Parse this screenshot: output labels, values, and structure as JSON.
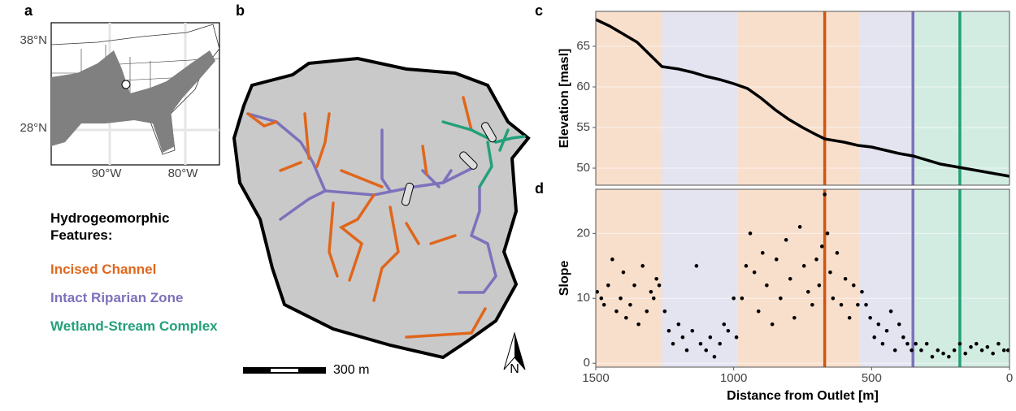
{
  "panel_a": {
    "label": "a",
    "lat_labels": [
      "38°N",
      "28°N"
    ],
    "lon_labels": [
      "90°W",
      "80°W"
    ]
  },
  "panel_b": {
    "label": "b",
    "scale_label": "300 m",
    "north_label": "N"
  },
  "legend": {
    "title": "Hydrogeomorphic Features:",
    "entries": [
      {
        "name": "Incised Channel",
        "color": "#e0661c"
      },
      {
        "name": "Intact Riparian Zone",
        "color": "#7c72bb"
      },
      {
        "name": "Wetland-Stream Complex",
        "color": "#23a07b"
      }
    ]
  },
  "chart_data": [
    {
      "type": "line",
      "label": "c",
      "y_label": "Elevation [masl]",
      "color": "#000000",
      "xlim": [
        1500,
        0
      ],
      "ylim": [
        47.9,
        69.3
      ],
      "yticks": [
        50,
        55,
        60,
        65
      ],
      "spans": [
        {
          "from": 1500,
          "to": 1260,
          "color": "#f8dfcc"
        },
        {
          "from": 1260,
          "to": 985,
          "color": "#e4e3f0"
        },
        {
          "from": 985,
          "to": 545,
          "color": "#f8dfcc"
        },
        {
          "from": 545,
          "to": 350,
          "color": "#e4e3f0"
        },
        {
          "from": 350,
          "to": 0,
          "color": "#d2ece2"
        }
      ],
      "vlines": [
        {
          "x": 670,
          "color": "#d1560f"
        },
        {
          "x": 350,
          "color": "#7c72bb"
        },
        {
          "x": 180,
          "color": "#23a07b"
        }
      ],
      "x": [
        1500,
        1450,
        1400,
        1350,
        1320,
        1290,
        1260,
        1200,
        1150,
        1100,
        1050,
        1000,
        950,
        900,
        850,
        800,
        750,
        700,
        670,
        600,
        550,
        500,
        450,
        400,
        350,
        300,
        250,
        200,
        150,
        100,
        50,
        0
      ],
      "y": [
        68.3,
        67.5,
        66.5,
        65.5,
        64.5,
        63.5,
        62.5,
        62.2,
        61.8,
        61.3,
        60.9,
        60.4,
        59.8,
        58.6,
        57.2,
        56,
        55,
        54.1,
        53.6,
        53.2,
        52.8,
        52.6,
        52.2,
        51.8,
        51.5,
        51,
        50.5,
        50.2,
        49.9,
        49.6,
        49.3,
        49.0
      ]
    },
    {
      "type": "scatter",
      "label": "d",
      "y_label": "Slope",
      "x_label": "Distance from Outlet [m]",
      "color": "#000000",
      "xlim": [
        1500,
        0
      ],
      "ylim": [
        -0.6,
        26.8
      ],
      "xticks": [
        1500,
        1000,
        500,
        0
      ],
      "yticks": [
        0,
        10,
        20
      ],
      "spans": [
        {
          "from": 1500,
          "to": 1260,
          "color": "#f8dfcc"
        },
        {
          "from": 1260,
          "to": 985,
          "color": "#e4e3f0"
        },
        {
          "from": 985,
          "to": 545,
          "color": "#f8dfcc"
        },
        {
          "from": 545,
          "to": 350,
          "color": "#e4e3f0"
        },
        {
          "from": 350,
          "to": 0,
          "color": "#d2ece2"
        }
      ],
      "vlines": [
        {
          "x": 670,
          "color": "#d1560f"
        },
        {
          "x": 350,
          "color": "#7c72bb"
        },
        {
          "x": 180,
          "color": "#23a07b"
        }
      ],
      "x": [
        1495,
        1480,
        1470,
        1455,
        1440,
        1425,
        1410,
        1400,
        1390,
        1375,
        1360,
        1345,
        1330,
        1315,
        1300,
        1290,
        1280,
        1270,
        1250,
        1235,
        1220,
        1200,
        1185,
        1170,
        1150,
        1135,
        1120,
        1100,
        1085,
        1070,
        1050,
        1035,
        1020,
        1000,
        990,
        970,
        955,
        940,
        925,
        910,
        895,
        880,
        860,
        845,
        830,
        810,
        795,
        780,
        760,
        745,
        730,
        715,
        700,
        690,
        680,
        670,
        660,
        650,
        640,
        625,
        610,
        595,
        580,
        565,
        550,
        535,
        520,
        505,
        490,
        475,
        460,
        445,
        430,
        415,
        400,
        385,
        370,
        355,
        340,
        320,
        300,
        280,
        260,
        240,
        220,
        200,
        180,
        160,
        140,
        120,
        100,
        80,
        60,
        40,
        20,
        5
      ],
      "y": [
        11,
        10,
        9,
        12,
        16,
        8,
        10,
        14,
        7,
        9,
        12,
        6,
        15,
        8,
        11,
        10,
        13,
        12,
        8,
        5,
        3,
        6,
        4,
        2,
        5,
        15,
        3,
        2,
        4,
        1,
        3,
        6,
        5,
        10,
        4,
        10,
        15,
        20,
        14,
        8,
        17,
        12,
        6,
        16,
        10,
        19,
        13,
        7,
        21,
        15,
        11,
        9,
        16,
        12,
        18,
        26,
        20,
        14,
        10,
        17,
        9,
        13,
        7,
        12,
        9,
        11,
        9,
        7,
        4,
        6,
        3,
        5,
        8,
        2,
        6,
        4,
        3,
        2,
        3,
        2,
        3,
        1,
        2,
        1.5,
        1,
        2,
        3,
        1.5,
        2.5,
        3,
        2,
        2.5,
        1.5,
        3,
        2,
        2
      ]
    }
  ]
}
